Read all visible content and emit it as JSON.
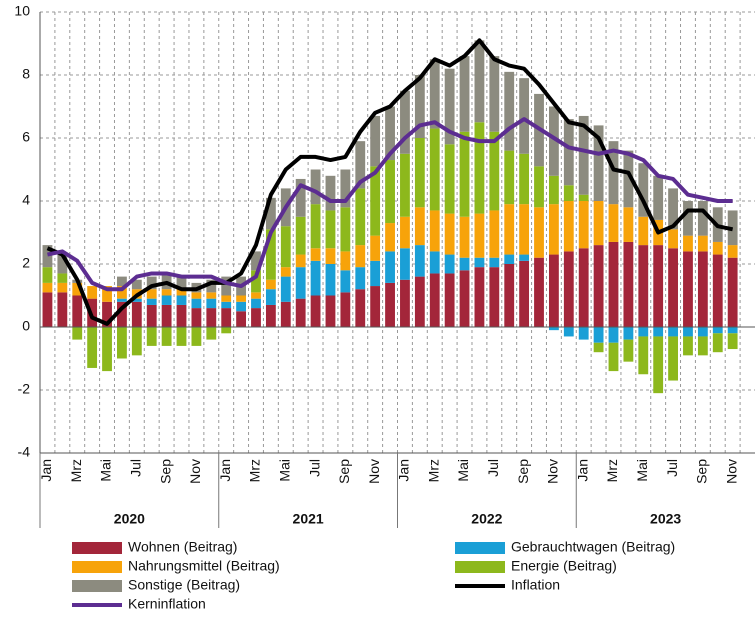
{
  "chart_data": {
    "type": "bar",
    "stacked": true,
    "categories": [
      "Jan",
      null,
      "Mrz",
      null,
      "Mai",
      null,
      "Jul",
      null,
      "Sep",
      null,
      "Nov",
      null,
      "Jan",
      null,
      "Mrz",
      null,
      "Mai",
      null,
      "Jul",
      null,
      "Sep",
      null,
      "Nov",
      null,
      "Jan",
      null,
      "Mrz",
      null,
      "Mai",
      null,
      "Jul",
      null,
      "Sep",
      null,
      "Nov",
      null,
      "Jan",
      null,
      "Mrz",
      null,
      "Mai",
      null,
      "Jul",
      null,
      "Sep",
      null,
      "Nov"
    ],
    "years": [
      "2020",
      "2021",
      "2022",
      "2023"
    ],
    "ylim": [
      -4,
      10
    ],
    "yticks": [
      -4,
      -2,
      0,
      2,
      4,
      6,
      8,
      10
    ],
    "grid": true,
    "series": [
      {
        "name": "Wohnen (Beitrag)",
        "type": "bar",
        "color": "#a3263a",
        "values": [
          1.1,
          1.1,
          1.0,
          0.9,
          0.8,
          0.8,
          0.8,
          0.7,
          0.7,
          0.7,
          0.6,
          0.6,
          0.6,
          0.5,
          0.6,
          0.7,
          0.8,
          0.9,
          1.0,
          1.0,
          1.1,
          1.2,
          1.3,
          1.4,
          1.5,
          1.6,
          1.7,
          1.7,
          1.8,
          1.9,
          1.9,
          2.0,
          2.1,
          2.2,
          2.3,
          2.4,
          2.5,
          2.6,
          2.7,
          2.7,
          2.6,
          2.6,
          2.5,
          2.4,
          2.4,
          2.3,
          2.2
        ]
      },
      {
        "name": "Gebrauchtwagen (Beitrag)",
        "type": "bar",
        "color": "#1a9fd6",
        "values": [
          0.0,
          0.0,
          0.0,
          0.0,
          0.0,
          0.1,
          0.1,
          0.2,
          0.3,
          0.3,
          0.3,
          0.3,
          0.2,
          0.3,
          0.3,
          0.5,
          0.8,
          1.0,
          1.1,
          1.0,
          0.7,
          0.7,
          0.8,
          1.0,
          1.0,
          1.0,
          0.7,
          0.6,
          0.4,
          0.3,
          0.3,
          0.3,
          0.2,
          0.0,
          -0.1,
          -0.3,
          -0.4,
          -0.5,
          -0.5,
          -0.4,
          -0.3,
          -0.3,
          -0.3,
          -0.3,
          -0.3,
          -0.2,
          -0.2
        ]
      },
      {
        "name": "Nahrungsmittel (Beitrag)",
        "type": "bar",
        "color": "#f7a30a",
        "values": [
          0.3,
          0.3,
          0.4,
          0.4,
          0.5,
          0.4,
          0.3,
          0.3,
          0.2,
          0.2,
          0.2,
          0.2,
          0.2,
          0.2,
          0.2,
          0.3,
          0.3,
          0.4,
          0.4,
          0.5,
          0.6,
          0.7,
          0.8,
          0.9,
          1.0,
          1.2,
          1.3,
          1.3,
          1.3,
          1.4,
          1.5,
          1.6,
          1.6,
          1.6,
          1.6,
          1.6,
          1.5,
          1.4,
          1.2,
          1.1,
          0.9,
          0.8,
          0.6,
          0.5,
          0.5,
          0.4,
          0.4
        ]
      },
      {
        "name": "Energie (Beitrag)",
        "type": "bar",
        "color": "#8db81c",
        "values": [
          0.5,
          0.3,
          -0.4,
          -1.3,
          -1.4,
          -1.0,
          -0.9,
          -0.6,
          -0.6,
          -0.6,
          -0.6,
          -0.4,
          -0.2,
          0.0,
          0.7,
          1.6,
          1.3,
          1.2,
          1.4,
          1.2,
          1.4,
          1.8,
          2.2,
          2.0,
          2.0,
          2.2,
          2.6,
          2.2,
          2.7,
          2.9,
          2.5,
          1.7,
          1.6,
          1.3,
          0.9,
          0.5,
          0.2,
          -0.3,
          -0.9,
          -0.7,
          -1.2,
          -1.8,
          -1.4,
          -0.6,
          -0.6,
          -0.6,
          -0.5
        ]
      },
      {
        "name": "Sonstige (Beitrag)",
        "type": "bar",
        "color": "#8c8b7f",
        "values": [
          0.7,
          0.6,
          0.1,
          0.0,
          0.0,
          0.3,
          0.3,
          0.4,
          0.5,
          0.4,
          0.3,
          0.4,
          0.6,
          0.6,
          0.6,
          1.0,
          1.2,
          1.2,
          1.1,
          1.1,
          1.2,
          1.5,
          1.6,
          1.7,
          2.0,
          2.0,
          2.2,
          2.4,
          2.4,
          2.6,
          2.4,
          2.5,
          2.4,
          2.3,
          2.2,
          2.1,
          2.5,
          2.4,
          2.0,
          1.8,
          1.7,
          1.4,
          1.3,
          1.1,
          1.1,
          1.1,
          1.1
        ]
      },
      {
        "name": "Inflation",
        "type": "line",
        "color": "#000000",
        "values": [
          2.5,
          2.3,
          1.5,
          0.3,
          0.1,
          0.6,
          1.0,
          1.3,
          1.4,
          1.2,
          1.2,
          1.4,
          1.4,
          1.7,
          2.6,
          4.2,
          5.0,
          5.4,
          5.4,
          5.3,
          5.4,
          6.2,
          6.8,
          7.0,
          7.5,
          7.9,
          8.5,
          8.3,
          8.6,
          9.1,
          8.5,
          8.3,
          8.2,
          7.7,
          7.1,
          6.5,
          6.4,
          6.0,
          5.0,
          4.9,
          4.0,
          3.0,
          3.2,
          3.7,
          3.7,
          3.2,
          3.1
        ]
      },
      {
        "name": "Kerninflation",
        "type": "line",
        "color": "#5c2d91",
        "values": [
          2.3,
          2.4,
          2.1,
          1.4,
          1.2,
          1.2,
          1.6,
          1.7,
          1.7,
          1.6,
          1.6,
          1.6,
          1.4,
          1.3,
          1.6,
          3.0,
          3.8,
          4.5,
          4.3,
          4.0,
          4.0,
          4.6,
          4.9,
          5.5,
          6.0,
          6.4,
          6.5,
          6.2,
          6.0,
          5.9,
          5.9,
          6.3,
          6.6,
          6.3,
          6.0,
          5.7,
          5.6,
          5.5,
          5.6,
          5.5,
          5.3,
          4.8,
          4.7,
          4.2,
          4.1,
          4.0,
          4.0
        ]
      }
    ]
  }
}
